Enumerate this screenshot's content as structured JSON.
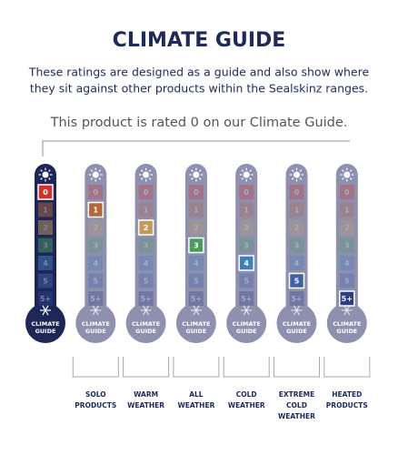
{
  "header": {
    "title": "CLIMATE GUIDE",
    "subtitle_lines": [
      "These ratings are designed as a guide and also show where",
      "they sit against other products within the Sealskinz ranges."
    ],
    "rating": "This product is rated 0 on our Climate Guide."
  },
  "scale": {
    "levels": [
      "0",
      "1",
      "2",
      "3",
      "4",
      "5",
      "5+"
    ],
    "colors": [
      "#d3322b",
      "#b5673a",
      "#c49a55",
      "#4c9a5c",
      "#3f7fc0",
      "#3f5fae",
      "#2c3e86"
    ],
    "bulb_label": [
      "CLIMATE",
      "GUIDE"
    ]
  },
  "thermometers": [
    {
      "highlight": 0,
      "current": true
    },
    {
      "highlight": 1,
      "current": false
    },
    {
      "highlight": 2,
      "current": false
    },
    {
      "highlight": 3,
      "current": false
    },
    {
      "highlight": 4,
      "current": false
    },
    {
      "highlight": 5,
      "current": false
    },
    {
      "highlight": 6,
      "current": false
    }
  ],
  "categories": [
    [
      "SOLO",
      "PRODUCTS"
    ],
    [
      "WARM",
      "WEATHER"
    ],
    [
      "ALL",
      "WEATHER"
    ],
    [
      "COLD",
      "WEATHER"
    ],
    [
      "EXTREME",
      "COLD",
      "WEATHER"
    ],
    [
      "HEATED",
      "PRODUCTS"
    ]
  ]
}
